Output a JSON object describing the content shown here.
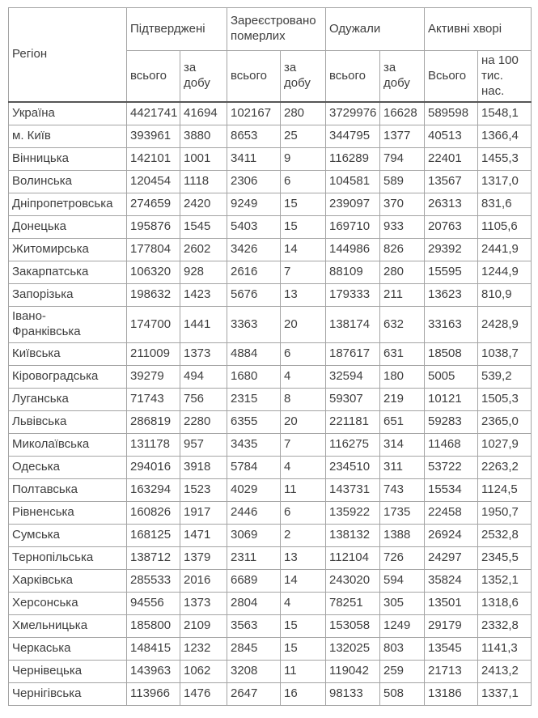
{
  "chart_data": {
    "type": "table",
    "header": {
      "region": "Регіон",
      "groups": [
        {
          "label": "Підтверджені",
          "subcolumns": [
            "всього",
            "за добу"
          ]
        },
        {
          "label": "Зареєстровано померлих",
          "subcolumns": [
            "всього",
            "за добу"
          ]
        },
        {
          "label": "Одужали",
          "subcolumns": [
            "всього",
            "за добу"
          ]
        },
        {
          "label": "Активні хворі",
          "subcolumns": [
            "Всього",
            "на 100 тис. нас."
          ],
          "subcolumn_1_lines": [
            "на 100",
            "тис. нас."
          ]
        }
      ]
    },
    "rows": [
      {
        "region": "Україна",
        "emphasis": true,
        "values": [
          "4421741",
          "41694",
          "102167",
          "280",
          "3729976",
          "16628",
          "589598",
          "1548,1"
        ]
      },
      {
        "region": "м. Київ",
        "values": [
          "393961",
          "3880",
          "8653",
          "25",
          "344795",
          "1377",
          "40513",
          "1366,4"
        ]
      },
      {
        "region": "Вінницька",
        "values": [
          "142101",
          "1001",
          "3411",
          "9",
          "116289",
          "794",
          "22401",
          "1455,3"
        ]
      },
      {
        "region": "Волинська",
        "values": [
          "120454",
          "1118",
          "2306",
          "6",
          "104581",
          "589",
          "13567",
          "1317,0"
        ]
      },
      {
        "region": "Дніпропетровська",
        "values": [
          "274659",
          "2420",
          "9249",
          "15",
          "239097",
          "370",
          "26313",
          "831,6"
        ]
      },
      {
        "region": "Донецька",
        "values": [
          "195876",
          "1545",
          "5403",
          "15",
          "169710",
          "933",
          "20763",
          "1105,6"
        ]
      },
      {
        "region": "Житомирська",
        "values": [
          "177804",
          "2602",
          "3426",
          "14",
          "144986",
          "826",
          "29392",
          "2441,9"
        ]
      },
      {
        "region": "Закарпатська",
        "values": [
          "106320",
          "928",
          "2616",
          "7",
          "88109",
          "280",
          "15595",
          "1244,9"
        ]
      },
      {
        "region": "Запорізька",
        "values": [
          "198632",
          "1423",
          "5676",
          "13",
          "179333",
          "211",
          "13623",
          "810,9"
        ]
      },
      {
        "region": "Івано-Франківська",
        "region_lines": [
          "Івано-",
          "Франківська"
        ],
        "values": [
          "174700",
          "1441",
          "3363",
          "20",
          "138174",
          "632",
          "33163",
          "2428,9"
        ]
      },
      {
        "region": "Київська",
        "values": [
          "211009",
          "1373",
          "4884",
          "6",
          "187617",
          "631",
          "18508",
          "1038,7"
        ]
      },
      {
        "region": "Кіровоградська",
        "values": [
          "39279",
          "494",
          "1680",
          "4",
          "32594",
          "180",
          "5005",
          "539,2"
        ]
      },
      {
        "region": "Луганська",
        "values": [
          "71743",
          "756",
          "2315",
          "8",
          "59307",
          "219",
          "10121",
          "1505,3"
        ]
      },
      {
        "region": "Львівська",
        "values": [
          "286819",
          "2280",
          "6355",
          "20",
          "221181",
          "651",
          "59283",
          "2365,0"
        ]
      },
      {
        "region": "Миколаївська",
        "values": [
          "131178",
          "957",
          "3435",
          "7",
          "116275",
          "314",
          "11468",
          "1027,9"
        ]
      },
      {
        "region": "Одеська",
        "values": [
          "294016",
          "3918",
          "5784",
          "4",
          "234510",
          "311",
          "53722",
          "2263,2"
        ]
      },
      {
        "region": "Полтавська",
        "values": [
          "163294",
          "1523",
          "4029",
          "11",
          "143731",
          "743",
          "15534",
          "1124,5"
        ]
      },
      {
        "region": "Рівненська",
        "values": [
          "160826",
          "1917",
          "2446",
          "6",
          "135922",
          "1735",
          "22458",
          "1950,7"
        ]
      },
      {
        "region": "Сумська",
        "values": [
          "168125",
          "1471",
          "3069",
          "2",
          "138132",
          "1388",
          "26924",
          "2532,8"
        ]
      },
      {
        "region": "Тернопільська",
        "values": [
          "138712",
          "1379",
          "2311",
          "13",
          "112104",
          "726",
          "24297",
          "2345,5"
        ]
      },
      {
        "region": "Харківська",
        "values": [
          "285533",
          "2016",
          "6689",
          "14",
          "243020",
          "594",
          "35824",
          "1352,1"
        ]
      },
      {
        "region": "Херсонська",
        "values": [
          "94556",
          "1373",
          "2804",
          "4",
          "78251",
          "305",
          "13501",
          "1318,6"
        ]
      },
      {
        "region": "Хмельницька",
        "values": [
          "185800",
          "2109",
          "3563",
          "15",
          "153058",
          "1249",
          "29179",
          "2332,8"
        ]
      },
      {
        "region": "Черкаська",
        "values": [
          "148415",
          "1232",
          "2845",
          "15",
          "132025",
          "803",
          "13545",
          "1141,3"
        ]
      },
      {
        "region": "Чернівецька",
        "values": [
          "143963",
          "1062",
          "3208",
          "11",
          "119042",
          "259",
          "21713",
          "2413,2"
        ]
      },
      {
        "region": "Чернігівська",
        "values": [
          "113966",
          "1476",
          "2647",
          "16",
          "98133",
          "508",
          "13186",
          "1337,1"
        ]
      }
    ],
    "colors": {
      "text": "#3e3e3e",
      "inner_border": "#a4a4a4",
      "outer_border": "#7d7d7d",
      "header_divider": "#565656",
      "background": "#ffffff"
    }
  }
}
